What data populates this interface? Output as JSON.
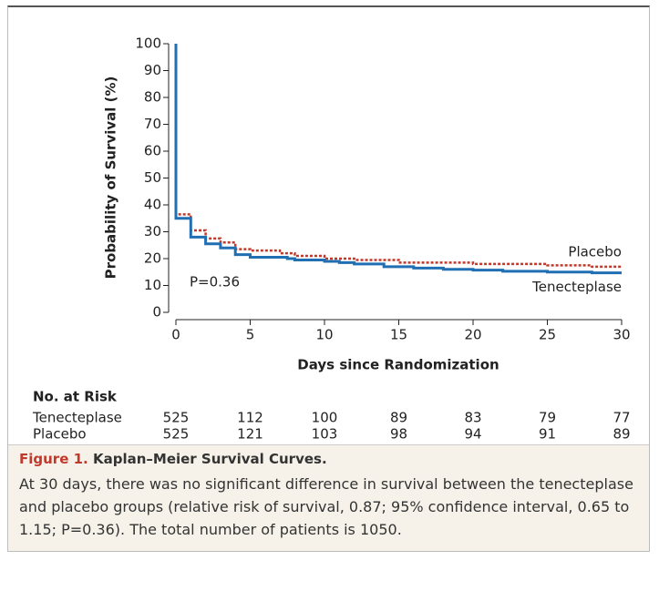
{
  "chart_data": {
    "type": "step",
    "y_label": "Probability of Survival (%)",
    "x_label": "Days since Randomization",
    "xlim": [
      0,
      30
    ],
    "xticks": [
      0,
      5,
      10,
      15,
      20,
      25,
      30
    ],
    "ylim": [
      0,
      100
    ],
    "yticks": [
      0,
      10,
      20,
      30,
      40,
      50,
      60,
      70,
      80,
      90,
      100
    ],
    "series": [
      {
        "name": "Placebo",
        "color": "#c0392b",
        "dash": true,
        "x": [
          0,
          0,
          1,
          2,
          3,
          4,
          5,
          7,
          8,
          10,
          12,
          15,
          20,
          25,
          28,
          30
        ],
        "values": [
          100,
          36.5,
          30.5,
          27.5,
          26,
          23.5,
          23,
          22,
          21,
          20,
          19.5,
          18.5,
          18,
          17.5,
          17,
          17
        ]
      },
      {
        "name": "Tenecteplase",
        "color": "#1f6fb2",
        "dash": false,
        "x": [
          0,
          0,
          1,
          2,
          3,
          4,
          5,
          7.5,
          8,
          10,
          11,
          12,
          14,
          16,
          18,
          20,
          22,
          25,
          28,
          30
        ],
        "values": [
          100,
          35,
          28,
          25.5,
          24,
          21.5,
          20.5,
          20,
          19.5,
          19,
          18.5,
          18,
          17,
          16.5,
          16,
          15.7,
          15.3,
          15,
          14.7,
          14.7
        ]
      }
    ],
    "annotation": "P=0.36",
    "risk_table": {
      "title": "No. at Risk",
      "rows": [
        {
          "name": "Tenecteplase",
          "values": [
            525,
            112,
            100,
            89,
            83,
            79,
            77
          ]
        },
        {
          "name": "Placebo",
          "values": [
            525,
            121,
            103,
            98,
            94,
            91,
            89
          ]
        }
      ]
    }
  },
  "caption": {
    "number": "Figure 1.",
    "title": "Kaplan–Meier Survival Curves.",
    "body": "At 30 days, there was no significant difference in survival between the tenecteplase and placebo groups (relative risk of survival, 0.87; 95% confi­dence interval, 0.65 to 1.15; P=0.36). The total number of patients is 1050."
  }
}
